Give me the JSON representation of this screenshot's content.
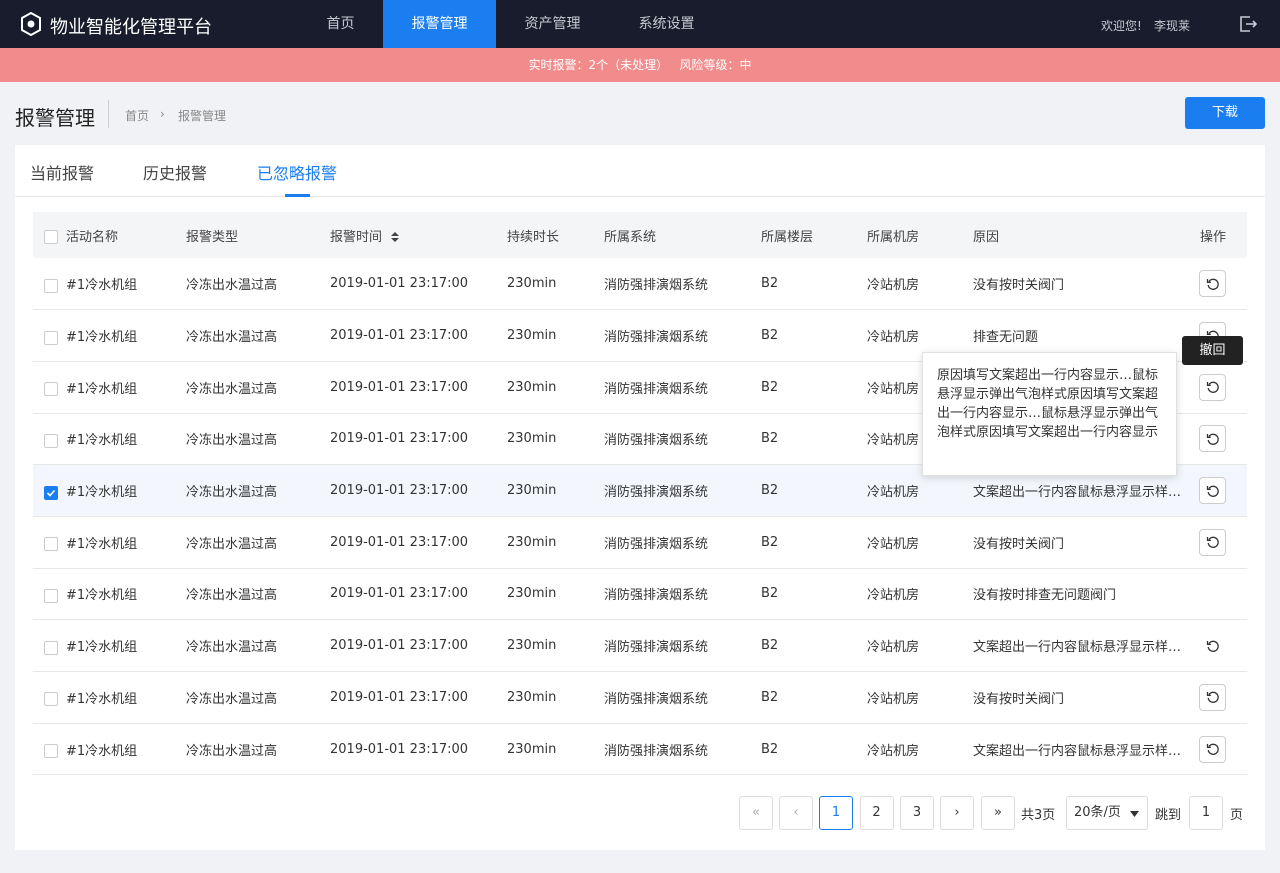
{
  "header": {
    "title": "物业智能化管理平台",
    "nav": [
      "首页",
      "报警管理",
      "资产管理",
      "系统设置"
    ],
    "welcome": "欢迎您!",
    "user": "李现莱"
  },
  "alert_bar": {
    "count": "实时报警：2个（未处理）",
    "risk": "风险等级：中"
  },
  "page": {
    "title": "报警管理",
    "breadcrumb": [
      "首页",
      "报警管理"
    ],
    "download": "下载"
  },
  "tabs": [
    "当前报警",
    "历史报警",
    "已忽略报警"
  ],
  "table": {
    "columns": [
      "活动名称",
      "报警类型",
      "报警时间",
      "持续时长",
      "所属系统",
      "所属楼层",
      "所属机房",
      "原因",
      "操作"
    ],
    "rows": [
      [
        "#1冷水机组",
        "冷冻出水温过高",
        "2019-01-01 23:17:00",
        "230min",
        "消防强排演烟系统",
        "B2",
        "冷站机房",
        "没有按时关阀门"
      ],
      [
        "#1冷水机组",
        "冷冻出水温过高",
        "2019-01-01 23:17:00",
        "230min",
        "消防强排演烟系统",
        "B2",
        "冷站机房",
        "排查无问题"
      ],
      [
        "#1冷水机组",
        "冷冻出水温过高",
        "2019-01-01 23:17:00",
        "230min",
        "消防强排演烟系统",
        "B2",
        "冷站机房",
        null
      ],
      [
        "#1冷水机组",
        "冷冻出水温过高",
        "2019-01-01 23:17:00",
        "230min",
        "消防强排演烟系统",
        "B2",
        "冷站机房",
        null
      ],
      [
        "#1冷水机组",
        "冷冻出水温过高",
        "2019-01-01 23:17:00",
        "230min",
        "消防强排演烟系统",
        "B2",
        "冷站机房",
        "文案超出一行内容鼠标悬浮显示样…"
      ],
      [
        "#1冷水机组",
        "冷冻出水温过高",
        "2019-01-01 23:17:00",
        "230min",
        "消防强排演烟系统",
        "B2",
        "冷站机房",
        "没有按时关阀门"
      ],
      [
        "#1冷水机组",
        "冷冻出水温过高",
        "2019-01-01 23:17:00",
        "230min",
        "消防强排演烟系统",
        "B2",
        "冷站机房",
        "没有按时排查无问题阀门"
      ],
      [
        "#1冷水机组",
        "冷冻出水温过高",
        "2019-01-01 23:17:00",
        "230min",
        "消防强排演烟系统",
        "B2",
        "冷站机房",
        "文案超出一行内容鼠标悬浮显示样…"
      ],
      [
        "#1冷水机组",
        "冷冻出水温过高",
        "2019-01-01 23:17:00",
        "230min",
        "消防强排演烟系统",
        "B2",
        "冷站机房",
        "没有按时关阀门"
      ],
      [
        "#1冷水机组",
        "冷冻出水温过高",
        "2019-01-01 23:17:00",
        "230min",
        "消防强排演烟系统",
        "B2",
        "冷站机房",
        "文案超出一行内容鼠标悬浮显示样…"
      ]
    ]
  },
  "tooltip": "原因填写文案超出一行内容显示…鼠标悬浮显示弹出气泡样式原因填写文案超出一行内容显示…鼠标悬浮显示弹出气泡样式原因填写文案超出一行内容显示",
  "action_tooltip": "撤回",
  "pagination": {
    "first": "«",
    "prev": "‹",
    "pages": [
      1,
      2,
      3
    ],
    "next": "›",
    "last": "»",
    "total": "共3页",
    "page_size": "20条/页",
    "jump": "跳到",
    "jump_value": 1,
    "unit": "页"
  }
}
